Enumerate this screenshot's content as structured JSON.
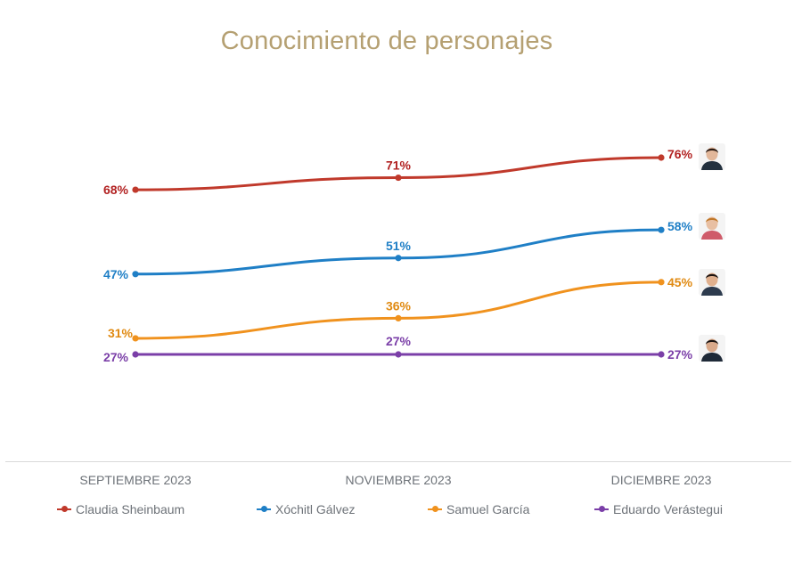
{
  "title": "Conocimiento de personajes",
  "chart_data": {
    "type": "line",
    "title": "Conocimiento de personajes",
    "categories": [
      "SEPTIEMBRE 2023",
      "NOVIEMBRE 2023",
      "DICIEMBRE 2023"
    ],
    "value_suffix": "%",
    "series": [
      {
        "name": "Claudia Sheinbaum",
        "color": "#c0392b",
        "label_color": "#b22222",
        "values": [
          68,
          71,
          76
        ]
      },
      {
        "name": "Xóchitl Gálvez",
        "color": "#1f7fc6",
        "label_color": "#1f7fc6",
        "values": [
          47,
          51,
          58
        ]
      },
      {
        "name": "Samuel García",
        "color": "#f0921e",
        "label_color": "#e08a12",
        "values": [
          31,
          36,
          45
        ]
      },
      {
        "name": "Eduardo Verástegui",
        "color": "#7b3fa8",
        "label_color": "#7b3fa8",
        "values": [
          27,
          27,
          27
        ]
      }
    ],
    "legend_position": "bottom",
    "grid": false
  },
  "avatars": [
    {
      "icon": "portrait-claudia-sheinbaum-icon",
      "skin": "#e2b79a",
      "hair": "#2b1a12",
      "shirt": "#23303e"
    },
    {
      "icon": "portrait-xochitl-galvez-icon",
      "skin": "#e8bfa2",
      "hair": "#c0782a",
      "shirt": "#cf5b6a"
    },
    {
      "icon": "portrait-samuel-garcia-icon",
      "skin": "#e0b08e",
      "hair": "#1c1411",
      "shirt": "#2d3b4e"
    },
    {
      "icon": "portrait-eduardo-verastegui-icon",
      "skin": "#d9a98a",
      "hair": "#1a1412",
      "shirt": "#1f2a38"
    }
  ]
}
